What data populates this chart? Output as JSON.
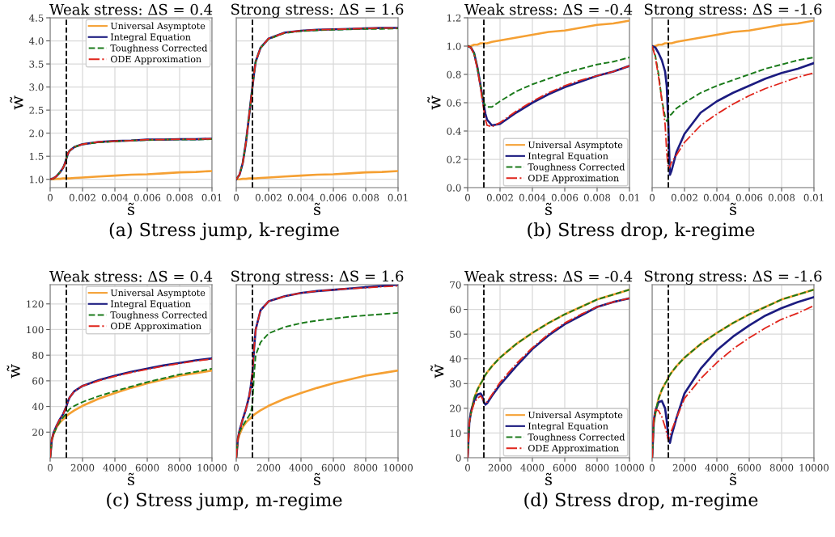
{
  "chart_data": [
    {
      "type": "line",
      "title": "Weak stress: ΔS = 0.4",
      "xlabel": "s̃",
      "ylabel": "w̃",
      "annotations": [
        "(a) Stress jump, k-regime"
      ],
      "grid": true,
      "legend": "top right",
      "x": [
        0,
        0.0002,
        0.0004,
        0.0006,
        0.0008,
        0.0009,
        0.001,
        0.0011,
        0.0012,
        0.0015,
        0.002,
        0.003,
        0.004,
        0.005,
        0.006,
        0.007,
        0.008,
        0.009,
        0.01
      ],
      "xlim": [
        0,
        0.01
      ],
      "xticks": [
        0,
        0.002,
        0.004,
        0.006,
        0.008,
        0.01
      ],
      "ylim": [
        0.82,
        4.5
      ],
      "yticks": [
        {
          "value": 1,
          "label": "1.0"
        },
        1.5,
        {
          "value": 2,
          "label": "2.0"
        },
        2.5,
        {
          "value": 3,
          "label": "3.0"
        },
        3.5,
        {
          "value": 4,
          "label": "4.0"
        },
        4.5
      ],
      "ref_lines": [
        {
          "axis": "x",
          "value": 0.001,
          "color": "#000000",
          "line_style": "dashed"
        }
      ],
      "series": [
        {
          "name": "Universal Asymptote",
          "color": "#f5a033",
          "line_style": "solid",
          "values": [
            1.0,
            1.0,
            1.01,
            1.01,
            1.02,
            1.02,
            1.02,
            1.02,
            1.02,
            1.03,
            1.04,
            1.06,
            1.08,
            1.1,
            1.11,
            1.13,
            1.15,
            1.16,
            1.18
          ]
        },
        {
          "name": "Integral Equation",
          "color": "#1c1c80",
          "line_style": "solid",
          "values": [
            1.0,
            1.02,
            1.07,
            1.15,
            1.25,
            1.33,
            1.45,
            1.56,
            1.62,
            1.7,
            1.76,
            1.81,
            1.83,
            1.84,
            1.86,
            1.86,
            1.87,
            1.87,
            1.88
          ]
        },
        {
          "name": "Toughness Corrected",
          "color": "#1a7a1a",
          "line_style": "dashed",
          "values": [
            1.0,
            1.02,
            1.07,
            1.15,
            1.25,
            1.33,
            1.45,
            1.56,
            1.62,
            1.7,
            1.76,
            1.8,
            1.82,
            1.84,
            1.85,
            1.86,
            1.86,
            1.86,
            1.87
          ]
        },
        {
          "name": "ODE Approximation",
          "color": "#e0241b",
          "line_style": "dashdot",
          "values": [
            1.0,
            1.02,
            1.07,
            1.15,
            1.25,
            1.33,
            1.45,
            1.56,
            1.62,
            1.7,
            1.76,
            1.81,
            1.83,
            1.84,
            1.86,
            1.86,
            1.87,
            1.87,
            1.88
          ]
        }
      ]
    },
    {
      "type": "line",
      "title": "Strong stress: ΔS = 1.6",
      "xlabel": "s̃",
      "grid": true,
      "tick_labels": "x",
      "x": [
        0,
        0.0002,
        0.0004,
        0.0006,
        0.0008,
        0.0009,
        0.001,
        0.0011,
        0.0012,
        0.0015,
        0.002,
        0.003,
        0.004,
        0.005,
        0.006,
        0.007,
        0.008,
        0.009,
        0.01
      ],
      "xlim": [
        0,
        0.01
      ],
      "xticks": [
        0,
        0.002,
        0.004,
        0.006,
        0.008,
        0.01
      ],
      "ylim": [
        0.82,
        4.5
      ],
      "ref_lines": [
        {
          "axis": "x",
          "value": 0.001,
          "color": "#000000",
          "line_style": "dashed"
        }
      ],
      "series": [
        {
          "color": "#f5a033",
          "line_style": "solid",
          "values": [
            1.0,
            1.0,
            1.01,
            1.01,
            1.02,
            1.02,
            1.02,
            1.02,
            1.02,
            1.03,
            1.04,
            1.06,
            1.08,
            1.1,
            1.11,
            1.13,
            1.15,
            1.16,
            1.18
          ]
        },
        {
          "color": "#1c1c80",
          "line_style": "solid",
          "values": [
            1.0,
            1.1,
            1.35,
            1.8,
            2.4,
            2.7,
            3.0,
            3.3,
            3.55,
            3.85,
            4.05,
            4.18,
            4.22,
            4.24,
            4.25,
            4.26,
            4.27,
            4.28,
            4.28
          ]
        },
        {
          "color": "#1a7a1a",
          "line_style": "dashed",
          "values": [
            1.0,
            1.1,
            1.35,
            1.8,
            2.4,
            2.7,
            3.0,
            3.3,
            3.55,
            3.85,
            4.04,
            4.17,
            4.21,
            4.23,
            4.24,
            4.25,
            4.26,
            4.26,
            4.27
          ]
        },
        {
          "color": "#e0241b",
          "line_style": "dashdot",
          "values": [
            1.0,
            1.1,
            1.35,
            1.8,
            2.4,
            2.7,
            3.0,
            3.3,
            3.55,
            3.85,
            4.05,
            4.18,
            4.22,
            4.24,
            4.25,
            4.26,
            4.27,
            4.28,
            4.28
          ]
        }
      ]
    },
    {
      "type": "line",
      "title": "Weak stress: ΔS = -0.4",
      "xlabel": "s̃",
      "ylabel": "w̃",
      "annotations": [
        "(b) Stress drop, k-regime"
      ],
      "grid": true,
      "legend": "bottom right",
      "x": [
        0,
        0.0002,
        0.0004,
        0.0006,
        0.0008,
        0.0009,
        0.001,
        0.0011,
        0.0012,
        0.0015,
        0.002,
        0.003,
        0.004,
        0.005,
        0.006,
        0.007,
        0.008,
        0.009,
        0.01
      ],
      "xlim": [
        0,
        0.01
      ],
      "xticks": [
        0,
        0.002,
        0.004,
        0.006,
        0.008,
        0.01
      ],
      "ylim": [
        0,
        1.2
      ],
      "yticks": [
        {
          "value": 0,
          "label": "0.0"
        },
        0.2,
        0.4,
        0.6,
        0.8,
        {
          "value": 1,
          "label": "1.0"
        },
        1.2
      ],
      "ref_lines": [
        {
          "axis": "x",
          "value": 0.001,
          "color": "#000000",
          "line_style": "dashed"
        }
      ],
      "series": [
        {
          "name": "Universal Asymptote",
          "color": "#f5a033",
          "line_style": "solid",
          "values": [
            1.0,
            1.0,
            1.01,
            1.01,
            1.02,
            1.02,
            1.02,
            1.02,
            1.02,
            1.03,
            1.04,
            1.06,
            1.08,
            1.1,
            1.11,
            1.13,
            1.15,
            1.16,
            1.18
          ]
        },
        {
          "name": "Integral Equation",
          "color": "#1c1c80",
          "line_style": "solid",
          "values": [
            1.0,
            0.99,
            0.95,
            0.85,
            0.72,
            0.65,
            0.58,
            0.52,
            0.48,
            0.44,
            0.45,
            0.53,
            0.6,
            0.66,
            0.71,
            0.75,
            0.79,
            0.82,
            0.86
          ]
        },
        {
          "name": "Toughness Corrected",
          "color": "#1a7a1a",
          "line_style": "dashed",
          "values": [
            1.0,
            0.99,
            0.95,
            0.85,
            0.72,
            0.65,
            0.6,
            0.58,
            0.57,
            0.57,
            0.61,
            0.68,
            0.73,
            0.77,
            0.81,
            0.84,
            0.87,
            0.89,
            0.92
          ]
        },
        {
          "name": "ODE Approximation",
          "color": "#e0241b",
          "line_style": "dashdot",
          "values": [
            1.0,
            0.99,
            0.94,
            0.84,
            0.7,
            0.62,
            0.55,
            0.48,
            0.44,
            0.43,
            0.46,
            0.54,
            0.61,
            0.67,
            0.72,
            0.76,
            0.79,
            0.82,
            0.86
          ]
        }
      ]
    },
    {
      "type": "line",
      "title": "Strong stress: ΔS = -1.6",
      "xlabel": "s̃",
      "grid": true,
      "tick_labels": "x",
      "x": [
        0,
        0.0002,
        0.0004,
        0.0006,
        0.0008,
        0.0009,
        0.001,
        0.0011,
        0.0012,
        0.0015,
        0.002,
        0.003,
        0.004,
        0.005,
        0.006,
        0.007,
        0.008,
        0.009,
        0.01
      ],
      "xlim": [
        0,
        0.01
      ],
      "xticks": [
        0,
        0.002,
        0.004,
        0.006,
        0.008,
        0.01
      ],
      "ylim": [
        0,
        1.2
      ],
      "ref_lines": [
        {
          "axis": "x",
          "value": 0.001,
          "color": "#000000",
          "line_style": "dashed"
        }
      ],
      "series": [
        {
          "color": "#f5a033",
          "line_style": "solid",
          "values": [
            1.0,
            1.0,
            1.01,
            1.01,
            1.02,
            1.02,
            1.02,
            1.02,
            1.02,
            1.03,
            1.04,
            1.06,
            1.08,
            1.1,
            1.11,
            1.13,
            1.15,
            1.16,
            1.18
          ]
        },
        {
          "color": "#1c1c80",
          "line_style": "solid",
          "values": [
            1.0,
            0.99,
            0.95,
            0.9,
            0.82,
            0.72,
            0.45,
            0.09,
            0.12,
            0.25,
            0.38,
            0.53,
            0.61,
            0.67,
            0.72,
            0.77,
            0.81,
            0.84,
            0.88
          ]
        },
        {
          "color": "#1a7a1a",
          "line_style": "dashed",
          "values": [
            1.0,
            0.93,
            0.8,
            0.62,
            0.5,
            0.47,
            0.49,
            0.51,
            0.52,
            0.56,
            0.6,
            0.67,
            0.72,
            0.76,
            0.8,
            0.84,
            0.87,
            0.9,
            0.92
          ]
        },
        {
          "color": "#e0241b",
          "line_style": "dashdot",
          "values": [
            1.0,
            0.92,
            0.78,
            0.62,
            0.45,
            0.25,
            0.13,
            0.15,
            0.18,
            0.23,
            0.32,
            0.44,
            0.52,
            0.59,
            0.65,
            0.7,
            0.74,
            0.78,
            0.81
          ]
        }
      ]
    },
    {
      "type": "line",
      "title": "Weak stress: ΔS = 0.4",
      "xlabel": "s̃",
      "ylabel": "w̃",
      "annotations": [
        "(c) Stress jump, m-regime"
      ],
      "grid": true,
      "legend": "top right",
      "x": [
        0,
        100,
        200,
        400,
        600,
        800,
        900,
        1000,
        1100,
        1200,
        1500,
        2000,
        3000,
        4000,
        5000,
        6000,
        7000,
        8000,
        9000,
        10000
      ],
      "xlim": [
        0,
        10000
      ],
      "xticks": [
        0,
        2000,
        4000,
        6000,
        8000,
        10000
      ],
      "ylim": [
        0,
        135
      ],
      "yticks": [
        20,
        40,
        60,
        80,
        100,
        120
      ],
      "ref_lines": [
        {
          "axis": "x",
          "value": 1000,
          "color": "#000000",
          "line_style": "dashed"
        }
      ],
      "series": [
        {
          "name": "Universal Asymptote",
          "color": "#f5a033",
          "line_style": "solid",
          "values": [
            0,
            14,
            18,
            24,
            27.5,
            30,
            31,
            32.5,
            33.5,
            34.5,
            37,
            40.5,
            46,
            50.5,
            54.5,
            58,
            61,
            64,
            66,
            68
          ]
        },
        {
          "name": "Integral Equation",
          "color": "#1c1c80",
          "line_style": "solid",
          "values": [
            0,
            14,
            19,
            25,
            30,
            34,
            37,
            40,
            44,
            47,
            52,
            56,
            60.5,
            64,
            67,
            69.5,
            72,
            74,
            76,
            77.5
          ]
        },
        {
          "name": "Toughness Corrected",
          "color": "#1a7a1a",
          "line_style": "dashed",
          "values": [
            0,
            14,
            18,
            24,
            28,
            31.5,
            33,
            34.5,
            36.5,
            38,
            40.5,
            43.5,
            48,
            52,
            55.5,
            59,
            62,
            65,
            67,
            69.5
          ]
        },
        {
          "name": "ODE Approximation",
          "color": "#e0241b",
          "line_style": "dashdot",
          "values": [
            0,
            14,
            19,
            25,
            30,
            34,
            37,
            40,
            44,
            47,
            52,
            56,
            60,
            63.5,
            66.5,
            69,
            71.5,
            73.5,
            75.5,
            77
          ]
        }
      ]
    },
    {
      "type": "line",
      "title": "Strong stress: ΔS = 1.6",
      "xlabel": "s̃",
      "grid": true,
      "tick_labels": "x",
      "x": [
        0,
        100,
        200,
        400,
        600,
        800,
        900,
        1000,
        1100,
        1200,
        1500,
        2000,
        3000,
        4000,
        5000,
        6000,
        7000,
        8000,
        9000,
        10000
      ],
      "xlim": [
        0,
        10000
      ],
      "xticks": [
        0,
        2000,
        4000,
        6000,
        8000,
        10000
      ],
      "ylim": [
        0,
        135
      ],
      "ref_lines": [
        {
          "axis": "x",
          "value": 1000,
          "color": "#000000",
          "line_style": "dashed"
        }
      ],
      "series": [
        {
          "color": "#f5a033",
          "line_style": "solid",
          "values": [
            0,
            14,
            18,
            24,
            27.5,
            30,
            31,
            32.5,
            33.5,
            34.5,
            37,
            40.5,
            46,
            50.5,
            54.5,
            58,
            61,
            64,
            66,
            68
          ]
        },
        {
          "color": "#1c1c80",
          "line_style": "solid",
          "values": [
            0,
            15,
            21,
            30,
            38,
            48,
            56,
            66,
            85,
            100,
            115,
            122,
            126,
            128.5,
            130,
            131,
            132,
            133,
            134,
            135
          ]
        },
        {
          "color": "#1a7a1a",
          "line_style": "dashed",
          "values": [
            0,
            15,
            20,
            25,
            29,
            33,
            35,
            42,
            65,
            80,
            90,
            97,
            102,
            105,
            107,
            108.5,
            110,
            111,
            112,
            113
          ]
        },
        {
          "color": "#e0241b",
          "line_style": "dashdot",
          "values": [
            0,
            15,
            21,
            30,
            38,
            48,
            56,
            66,
            85,
            100,
            115,
            122,
            126,
            128.5,
            130,
            131,
            132,
            132.5,
            133.5,
            134
          ]
        }
      ]
    },
    {
      "type": "line",
      "title": "Weak stress: ΔS = -0.4",
      "xlabel": "s̃",
      "ylabel": "w̃",
      "annotations": [
        "(d) Stress drop, m-regime"
      ],
      "grid": true,
      "legend": "bottom right",
      "x": [
        0,
        100,
        200,
        400,
        600,
        800,
        900,
        1000,
        1100,
        1200,
        1500,
        2000,
        3000,
        4000,
        5000,
        6000,
        7000,
        8000,
        9000,
        10000
      ],
      "xlim": [
        0,
        10000
      ],
      "xticks": [
        0,
        2000,
        4000,
        6000,
        8000,
        10000
      ],
      "ylim": [
        0,
        70
      ],
      "yticks": [
        0,
        10,
        20,
        30,
        40,
        50,
        60,
        70
      ],
      "ref_lines": [
        {
          "axis": "x",
          "value": 1000,
          "color": "#000000",
          "line_style": "dashed"
        }
      ],
      "series": [
        {
          "name": "Universal Asymptote",
          "color": "#f5a033",
          "line_style": "solid",
          "values": [
            null,
            null,
            18,
            24,
            27.5,
            30,
            31,
            32.5,
            33.5,
            34.5,
            37,
            40.5,
            46,
            50.5,
            54.5,
            58,
            61,
            64,
            66,
            68
          ]
        },
        {
          "name": "Integral Equation",
          "color": "#1c1c80",
          "line_style": "solid",
          "values": [
            0,
            14,
            18.5,
            23,
            25.5,
            26,
            25,
            22.5,
            21.5,
            22,
            25,
            29.5,
            37,
            44,
            49.5,
            54,
            57.5,
            61,
            63,
            64.5
          ]
        },
        {
          "name": "Toughness Corrected",
          "color": "#1a7a1a",
          "line_style": "dashed",
          "values": [
            0,
            14,
            18,
            24,
            27.5,
            30,
            31,
            32.5,
            33.5,
            34.5,
            37,
            40.5,
            46,
            50.5,
            54.5,
            58,
            61,
            64,
            66,
            68
          ]
        },
        {
          "name": "ODE Approximation",
          "color": "#e0241b",
          "line_style": "dashdot",
          "values": [
            0,
            14,
            18,
            22,
            24,
            25,
            24,
            23,
            22.5,
            22.5,
            25.5,
            30.5,
            38,
            44.5,
            50,
            54.5,
            58,
            61,
            63,
            64.5
          ]
        }
      ]
    },
    {
      "type": "line",
      "title": "Strong stress: ΔS = -1.6",
      "xlabel": "s̃",
      "grid": true,
      "tick_labels": "x",
      "x": [
        0,
        100,
        200,
        400,
        600,
        800,
        900,
        1000,
        1100,
        1200,
        1500,
        2000,
        3000,
        4000,
        5000,
        6000,
        7000,
        8000,
        9000,
        10000
      ],
      "xlim": [
        0,
        10000
      ],
      "xticks": [
        0,
        2000,
        4000,
        6000,
        8000,
        10000
      ],
      "ylim": [
        0,
        70
      ],
      "ref_lines": [
        {
          "axis": "x",
          "value": 1000,
          "color": "#000000",
          "line_style": "dashed"
        }
      ],
      "series": [
        {
          "color": "#f5a033",
          "line_style": "solid",
          "values": [
            0,
            14,
            18,
            24,
            27.5,
            30,
            31,
            32.5,
            33.5,
            34.5,
            37,
            40.5,
            46,
            50.5,
            54.5,
            58,
            61,
            64,
            66,
            68
          ]
        },
        {
          "color": "#1c1c80",
          "line_style": "solid",
          "values": [
            0,
            15,
            19,
            22.5,
            23,
            20,
            15,
            8,
            6,
            9,
            16,
            26,
            36,
            43.5,
            49,
            53.5,
            57.5,
            60.5,
            63,
            65
          ]
        },
        {
          "color": "#1a7a1a",
          "line_style": "dashed",
          "values": [
            0,
            14,
            18,
            24,
            27.5,
            30,
            31,
            32.5,
            33.5,
            34.5,
            37,
            40.5,
            46,
            50.5,
            54.5,
            58,
            61,
            64,
            66,
            68
          ]
        },
        {
          "color": "#e0241b",
          "line_style": "dashdot",
          "values": [
            0,
            16,
            19.5,
            19,
            16.5,
            12.5,
            10,
            7,
            9,
            11,
            16,
            24,
            32,
            38.5,
            44,
            48.5,
            52.5,
            56,
            58.5,
            61.5
          ]
        }
      ]
    }
  ]
}
